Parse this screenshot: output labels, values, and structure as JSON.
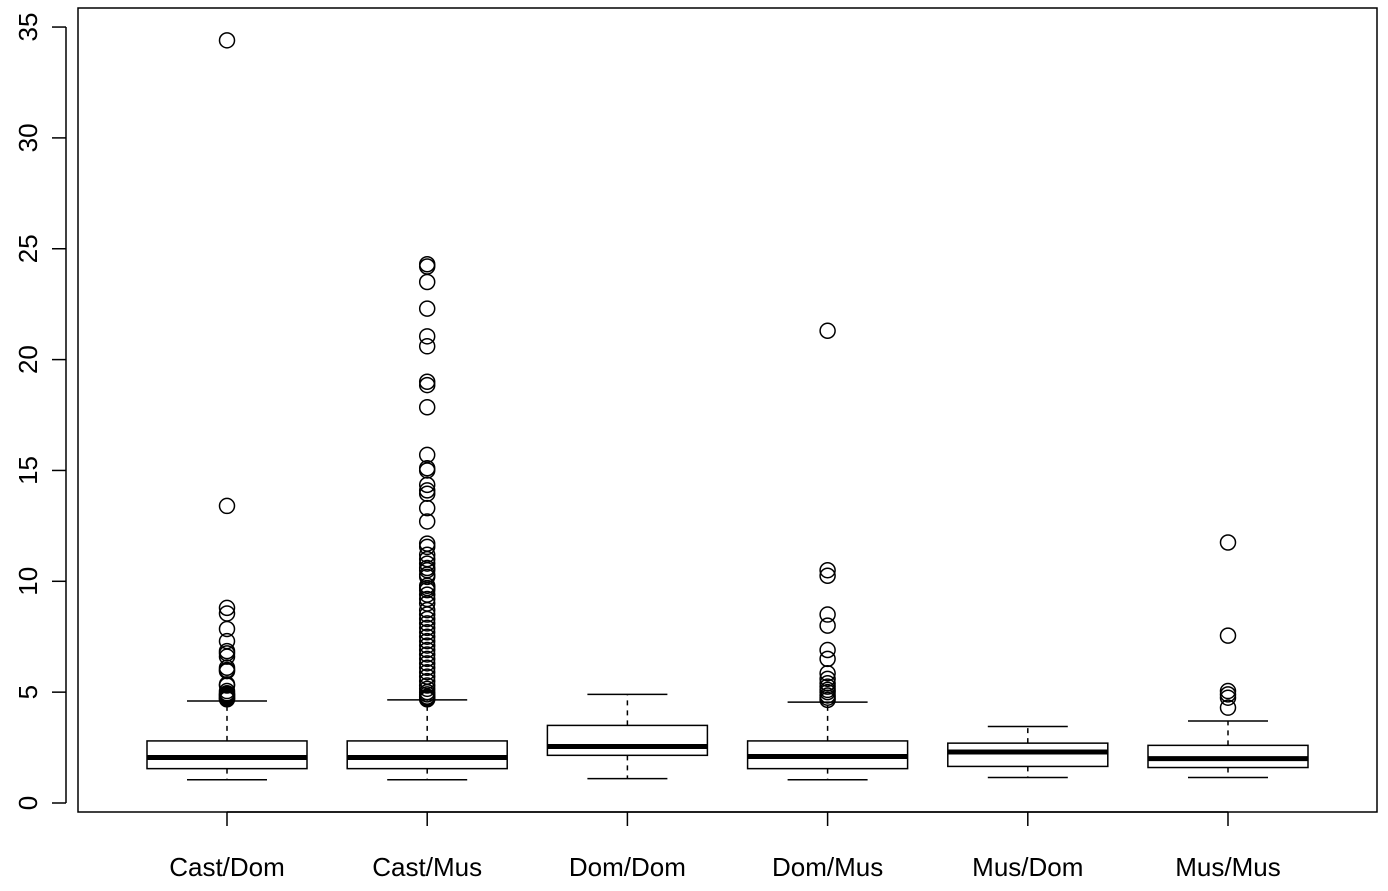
{
  "chart_data": {
    "type": "boxplot",
    "title": "",
    "xlabel": "",
    "ylabel": "",
    "ylim": [
      0,
      35
    ],
    "yticks": [
      0,
      5,
      10,
      15,
      20,
      25,
      30,
      35
    ],
    "ytick_labels": [
      "0",
      "5",
      "10",
      "15",
      "20",
      "25",
      "30",
      "35"
    ],
    "grid": false,
    "categories": [
      "Cast/Dom",
      "Cast/Mus",
      "Dom/Dom",
      "Dom/Mus",
      "Mus/Dom",
      "Mus/Mus"
    ],
    "boxes": [
      {
        "category": "Cast/Dom",
        "whisker_low": 1.05,
        "q1": 1.55,
        "median": 2.05,
        "q3": 2.8,
        "whisker_high": 4.6,
        "outliers": [
          34.4,
          13.4,
          8.8,
          8.55,
          7.85,
          7.3,
          6.85,
          6.75,
          6.6,
          6.1,
          6.0,
          5.95,
          5.35,
          5.3,
          5.05,
          4.95,
          4.9,
          4.85,
          4.8,
          4.75,
          4.7,
          4.68
        ]
      },
      {
        "category": "Cast/Mus",
        "whisker_low": 1.05,
        "q1": 1.55,
        "median": 2.05,
        "q3": 2.8,
        "whisker_high": 4.65,
        "outliers": [
          24.3,
          24.2,
          23.5,
          22.3,
          21.05,
          20.6,
          19.0,
          18.85,
          17.85,
          15.7,
          15.1,
          15.0,
          14.35,
          14.1,
          13.95,
          13.3,
          12.7,
          11.7,
          11.55,
          11.2,
          11.0,
          10.8,
          10.6,
          10.5,
          10.3,
          10.2,
          9.8,
          9.7,
          9.6,
          9.4,
          9.2,
          9.0,
          8.7,
          8.5,
          8.3,
          8.1,
          7.9,
          7.7,
          7.5,
          7.3,
          7.1,
          6.9,
          6.7,
          6.5,
          6.3,
          6.1,
          5.9,
          5.7,
          5.5,
          5.3,
          5.15,
          5.0,
          4.9,
          4.8,
          4.75,
          4.7,
          4.68
        ]
      },
      {
        "category": "Dom/Dom",
        "whisker_low": 1.1,
        "q1": 2.15,
        "median": 2.55,
        "q3": 3.5,
        "whisker_high": 4.9,
        "outliers": []
      },
      {
        "category": "Dom/Mus",
        "whisker_low": 1.05,
        "q1": 1.55,
        "median": 2.1,
        "q3": 2.8,
        "whisker_high": 4.55,
        "outliers": [
          21.3,
          10.5,
          10.25,
          8.5,
          8.0,
          6.9,
          6.5,
          5.85,
          5.6,
          5.4,
          5.25,
          5.1,
          5.0,
          4.85,
          4.75,
          4.65
        ]
      },
      {
        "category": "Mus/Dom",
        "whisker_low": 1.15,
        "q1": 1.65,
        "median": 2.3,
        "q3": 2.7,
        "whisker_high": 3.45,
        "outliers": []
      },
      {
        "category": "Mus/Mus",
        "whisker_low": 1.15,
        "q1": 1.6,
        "median": 2.0,
        "q3": 2.6,
        "whisker_high": 3.7,
        "outliers": [
          11.75,
          7.55,
          5.05,
          4.9,
          4.75,
          4.3
        ]
      }
    ]
  }
}
